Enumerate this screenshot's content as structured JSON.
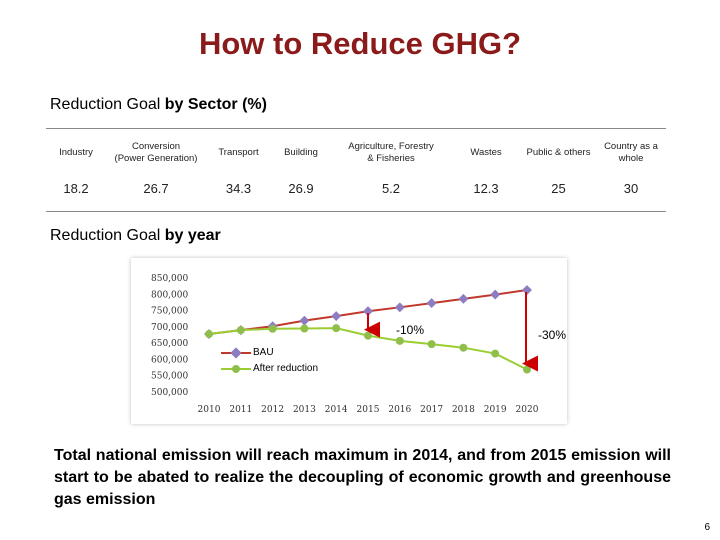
{
  "slide": {
    "title": "How to Reduce GHG?",
    "page_number": "6",
    "sector_heading": {
      "normal": "Reduction Goal ",
      "bold": "by Sector",
      "suffix": " (%)"
    },
    "year_heading": {
      "normal": "Reduction Goal ",
      "bold": "by year"
    },
    "summary": "Total national emission will reach maximum in 2014, and from 2015 emission will start to be abated to realize the decoupling of economic growth and greenhouse gas emission"
  },
  "sector_table": {
    "headers": [
      "Industry",
      "Conversion\n(Power Generation)",
      "Transport",
      "Building",
      "Agriculture, Forestry\n& Fisheries",
      "Wastes",
      "Public & others",
      "Country as a\nwhole"
    ],
    "values": [
      "18.2",
      "26.7",
      "34.3",
      "26.9",
      "5.2",
      "12.3",
      "25",
      "30"
    ]
  },
  "chart_data": {
    "type": "line",
    "title": "",
    "xlabel": "",
    "ylabel": "",
    "x": [
      "2010",
      "2011",
      "2012",
      "2013",
      "2014",
      "2015",
      "2016",
      "2017",
      "2018",
      "2019",
      "2020"
    ],
    "yticks": [
      "850,000",
      "800,000",
      "750,000",
      "700,000",
      "650,000",
      "600,000",
      "550,000",
      "500,000"
    ],
    "ylim": [
      500000,
      850000
    ],
    "grid": false,
    "legend_position": "left",
    "series": [
      {
        "name": "BAU",
        "color": "#c0392b",
        "marker_color": "#8e7cc3",
        "values": [
          678000,
          690000,
          702000,
          719000,
          733000,
          748000,
          760000,
          773000,
          786000,
          799000,
          813000
        ]
      },
      {
        "name": "After reduction",
        "color": "#9acd32",
        "marker_color": "#8fbf4a",
        "values": [
          678000,
          690000,
          694000,
          695000,
          696000,
          673000,
          657000,
          647000,
          636000,
          618000,
          569000
        ]
      }
    ],
    "annotations": [
      {
        "text": "-10%",
        "year": "2015"
      },
      {
        "text": "-30%",
        "year": "2020"
      }
    ]
  }
}
